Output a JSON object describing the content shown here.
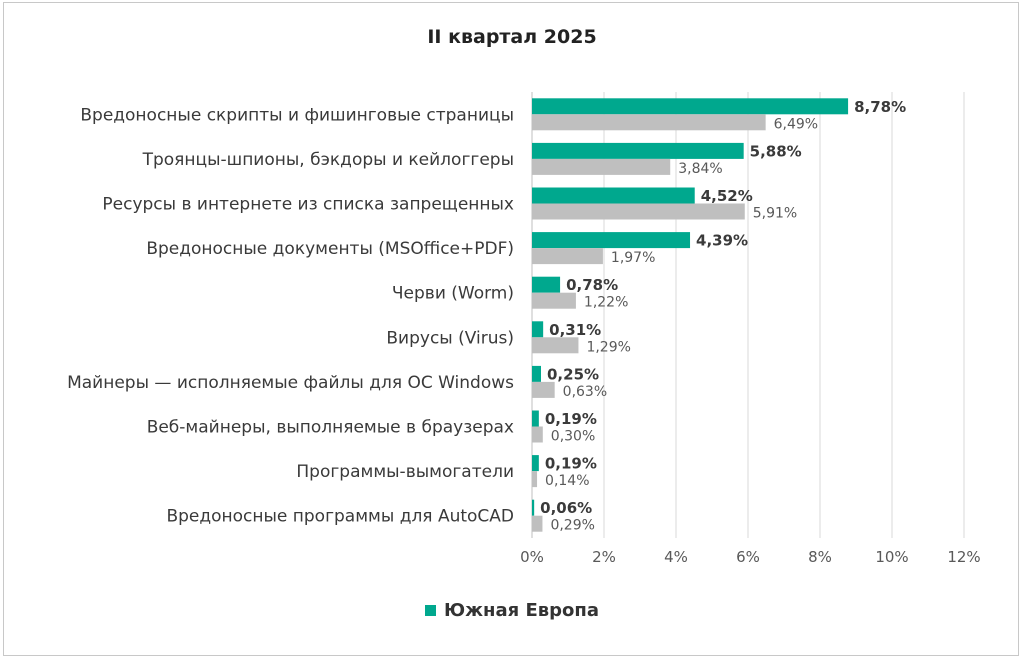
{
  "chart_data": {
    "type": "bar",
    "orientation": "horizontal",
    "title": "II квартал 2025",
    "categories": [
      "Вредоносные скрипты и фишинговые страницы",
      "Троянцы-шпионы, бэкдоры и кейлоггеры",
      "Ресурсы в интернете из списка запрещенных",
      "Вредоносные документы (MSOffice+PDF)",
      "Черви (Worm)",
      "Вирусы (Virus)",
      "Майнеры — исполняемые файлы для ОС Windows",
      "Веб-майнеры, выполняемые в браузерах",
      "Программы-вымогатели",
      "Вредоносные программы для AutoCAD"
    ],
    "series": [
      {
        "name": "Южная Европа",
        "color": "#00a88e",
        "values": [
          8.78,
          5.88,
          4.52,
          4.39,
          0.78,
          0.31,
          0.25,
          0.19,
          0.19,
          0.06
        ],
        "labels": [
          "8,78%",
          "5,88%",
          "4,52%",
          "4,39%",
          "0,78%",
          "0,31%",
          "0,25%",
          "0,19%",
          "0,19%",
          "0,06%"
        ]
      },
      {
        "color": "#bfbfbf",
        "values": [
          6.49,
          3.84,
          5.91,
          1.97,
          1.22,
          1.29,
          0.63,
          0.3,
          0.14,
          0.29
        ],
        "labels": [
          "6,49%",
          "3,84%",
          "5,91%",
          "1,97%",
          "1,22%",
          "1,29%",
          "0,63%",
          "0,30%",
          "0,14%",
          "0,29%"
        ]
      }
    ],
    "xlim": [
      0,
      12
    ],
    "xticks": [
      0,
      2,
      4,
      6,
      8,
      10,
      12
    ],
    "xtick_labels": [
      "0%",
      "2%",
      "4%",
      "6%",
      "8%",
      "10%",
      "12%"
    ],
    "grid": "vertical",
    "legend": "bottom"
  }
}
